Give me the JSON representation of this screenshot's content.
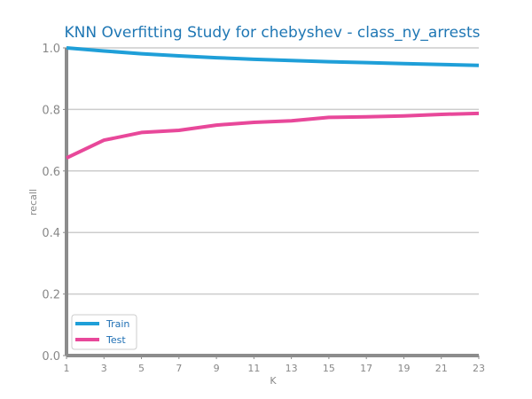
{
  "chart_data": {
    "type": "line",
    "title": "KNN Overfitting Study for chebyshev - class_ny_arrests",
    "xlabel": "K",
    "ylabel": "recall",
    "x": [
      1,
      3,
      5,
      7,
      9,
      11,
      13,
      15,
      17,
      19,
      21,
      23
    ],
    "x_ticks": [
      "1",
      "3",
      "5",
      "7",
      "9",
      "11",
      "13",
      "15",
      "17",
      "19",
      "21",
      "23"
    ],
    "y_ticks": [
      "0.0",
      "0.2",
      "0.4",
      "0.6",
      "0.8",
      "1.0"
    ],
    "xlim": [
      1,
      23
    ],
    "ylim": [
      0,
      1
    ],
    "grid": "horizontal",
    "legend_position": "lower-left",
    "series": [
      {
        "name": "Train",
        "color": "#1f9fd8",
        "values": [
          1.0,
          0.99,
          0.981,
          0.974,
          0.968,
          0.963,
          0.959,
          0.955,
          0.952,
          0.949,
          0.946,
          0.943
        ]
      },
      {
        "name": "Test",
        "color": "#e8489a",
        "values": [
          0.642,
          0.7,
          0.725,
          0.732,
          0.749,
          0.758,
          0.763,
          0.774,
          0.776,
          0.779,
          0.784,
          0.787
        ]
      }
    ]
  }
}
